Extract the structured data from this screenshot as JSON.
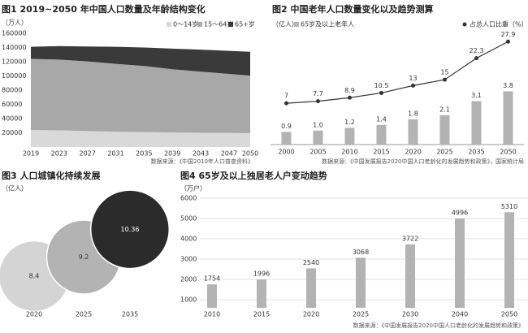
{
  "chart_data": [
    {
      "type": "area",
      "title": "图1 2019~2050 年中国人口数量及年龄结构变化",
      "unit": "（万人）",
      "x": [
        2019,
        2023,
        2027,
        2031,
        2035,
        2039,
        2043,
        2047,
        2050
      ],
      "series": [
        {
          "name": "0～14岁",
          "color": "#d9d9d9",
          "values": [
            24000,
            23500,
            22500,
            21500,
            21000,
            20500,
            20000,
            19800,
            19500
          ]
        },
        {
          "name": "15～64岁",
          "color": "#a8a8a8",
          "values": [
            100000,
            99500,
            98000,
            95500,
            93000,
            89000,
            86000,
            83000,
            81000
          ]
        },
        {
          "name": "65+岁",
          "color": "#3a3a3a",
          "values": [
            17000,
            19000,
            21000,
            24000,
            26000,
            29000,
            31000,
            32500,
            33500
          ]
        }
      ],
      "xlim": [
        2019,
        2050
      ],
      "xticks": [
        2019,
        2023,
        2027,
        2031,
        2035,
        2039,
        2043,
        2047,
        2050
      ],
      "ylim": [
        0,
        160000
      ],
      "yticks": [
        20000,
        40000,
        60000,
        80000,
        100000,
        120000,
        140000,
        160000
      ],
      "grid": false,
      "legend": "top-right",
      "source": "数据来源：《中国2010年人口普查资料》"
    },
    {
      "type": "combo",
      "title": "图2 中国老年人口数量变化以及趋势测算",
      "unit": "（亿人）",
      "categories": [
        "2000",
        "2005",
        "2010",
        "2015",
        "2020",
        "2025",
        "2035",
        "2050"
      ],
      "series": [
        {
          "name": "65岁及以上老年人",
          "color": "#b3b3b3",
          "values": [
            0.9,
            1.0,
            1.2,
            1.4,
            1.8,
            2.1,
            3.1,
            3.8
          ],
          "value_labels": [
            "0.9",
            "1.0",
            "1.2",
            "1.4",
            "1.8",
            "2.1",
            "3.1",
            "3.8"
          ]
        },
        {
          "name": "占总人口比重（%）",
          "color": "#333333",
          "axis": "y2",
          "values": [
            7,
            7.7,
            8.9,
            10.5,
            13,
            15,
            22.3,
            27.9
          ]
        }
      ],
      "ylim": [
        0,
        8
      ],
      "y2lim": [
        -7,
        31
      ],
      "legend": "top",
      "source": "数据来源：《中国发展报告2020中国人口老龄化的发展趋势和政策》，国家统计局"
    },
    {
      "type": "bubble",
      "title": "图3 人口城镇化持续发展",
      "unit": "（亿人）",
      "categories": [
        "2020",
        "2025",
        "2035"
      ],
      "values": [
        8.4,
        9.2,
        10.36
      ],
      "colors": [
        "#d4d4d4",
        "#b3b3b3",
        "#2b2b2b"
      ],
      "ylim": [
        6.7,
        11.8
      ]
    },
    {
      "type": "bar",
      "title": "图4 65岁及以上独居老人户变动趋势",
      "unit": "（万户）",
      "categories": [
        "2010",
        "2015",
        "2020",
        "2025",
        "2030",
        "2040",
        "2050"
      ],
      "values": [
        1754,
        1996,
        2540,
        3068,
        3722,
        4996,
        5310
      ],
      "color": "#b3b3b3",
      "ylim": [
        600,
        6000
      ],
      "yticks": [
        1000,
        2000,
        3000,
        4000,
        5000,
        6000
      ],
      "grid": true,
      "source": "数据来源：《中国发展报告2020中国人口老龄化的发展趋势和政策》"
    }
  ]
}
